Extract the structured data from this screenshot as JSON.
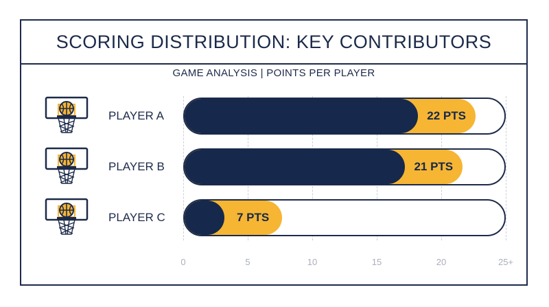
{
  "chart_data": {
    "type": "bar",
    "orientation": "horizontal",
    "title": "SCORING DISTRIBUTION: KEY CONTRIBUTORS",
    "subtitle": "GAME ANALYSIS | POINTS PER PLAYER",
    "categories": [
      "PLAYER A",
      "PLAYER B",
      "PLAYER C"
    ],
    "values": [
      22,
      21,
      7
    ],
    "value_labels": [
      "22 PTS",
      "21 PTS",
      "7 PTS"
    ],
    "x_ticks": [
      "0",
      "5",
      "10",
      "15",
      "20",
      "25+"
    ],
    "xlim": [
      0,
      25
    ],
    "grid": true,
    "colors": {
      "primary": "#16284b",
      "accent": "#f6b533",
      "border": "#1c2a4a"
    },
    "icon": "basketball-hoop-icon"
  }
}
